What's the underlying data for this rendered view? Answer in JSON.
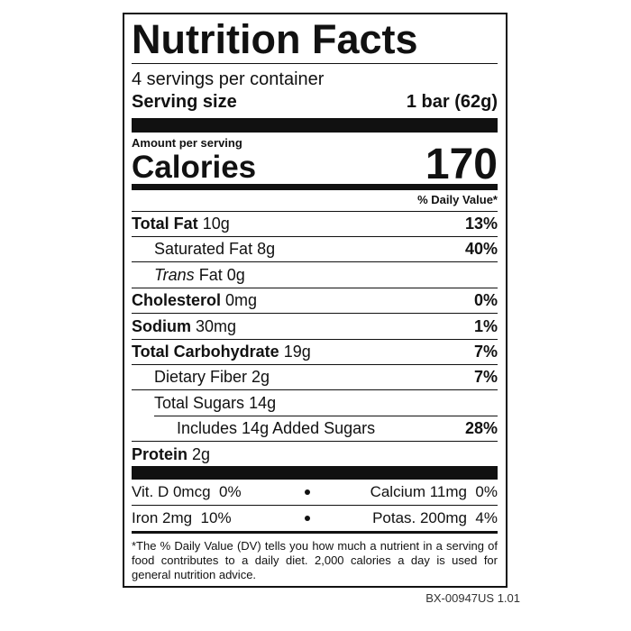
{
  "label": {
    "title": "Nutrition Facts",
    "servings": "4 servings per container",
    "serving_size_label": "Serving size",
    "serving_size_value": "1 bar (62g)",
    "amount_per_serving": "Amount per serving",
    "calories_label": "Calories",
    "calories_value": "170",
    "dv_header": "% Daily Value*",
    "nutrients": [
      {
        "name": "Total Fat",
        "amount": "10g",
        "dv": "13%"
      },
      {
        "name": "Saturated Fat",
        "amount": "8g",
        "dv": "40%"
      },
      {
        "prefix": "Trans",
        "name": "Fat",
        "amount": "0g"
      },
      {
        "name": "Cholesterol",
        "amount": "0mg",
        "dv": "0%"
      },
      {
        "name": "Sodium",
        "amount": "30mg",
        "dv": "1%"
      },
      {
        "name": "Total Carbohydrate",
        "amount": "19g",
        "dv": "7%"
      },
      {
        "name": "Dietary Fiber",
        "amount": "2g",
        "dv": "7%"
      },
      {
        "name": "Total Sugars",
        "amount": "14g"
      },
      {
        "name": "Includes 14g Added Sugars",
        "dv": "28%"
      },
      {
        "name": "Protein",
        "amount": "2g"
      }
    ],
    "minerals": [
      [
        {
          "name": "Vit. D 0mcg",
          "dv": "0%"
        },
        {
          "name": "Calcium 11mg",
          "dv": "0%"
        }
      ],
      [
        {
          "name": "Iron 2mg",
          "dv": "10%"
        },
        {
          "name": "Potas. 200mg",
          "dv": "4%"
        }
      ]
    ],
    "footnote": "*The % Daily Value (DV) tells you how much a nutrient in a serving of food contributes to a daily diet. 2,000 calories a day is used for general nutrition advice.",
    "code": "BX-00947US 1.01"
  }
}
